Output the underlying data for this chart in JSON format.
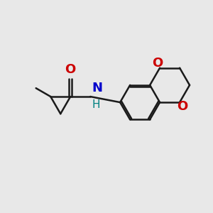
{
  "bg_color": "#e8e8e8",
  "bond_color": "#1a1a1a",
  "O_color": "#cc0000",
  "N_color": "#0000cc",
  "H_color": "#008080",
  "line_width": 1.8,
  "font_size": 12,
  "figsize": [
    3.0,
    3.0
  ],
  "dpi": 100,
  "xlim": [
    0,
    10
  ],
  "ylim": [
    0,
    10
  ]
}
